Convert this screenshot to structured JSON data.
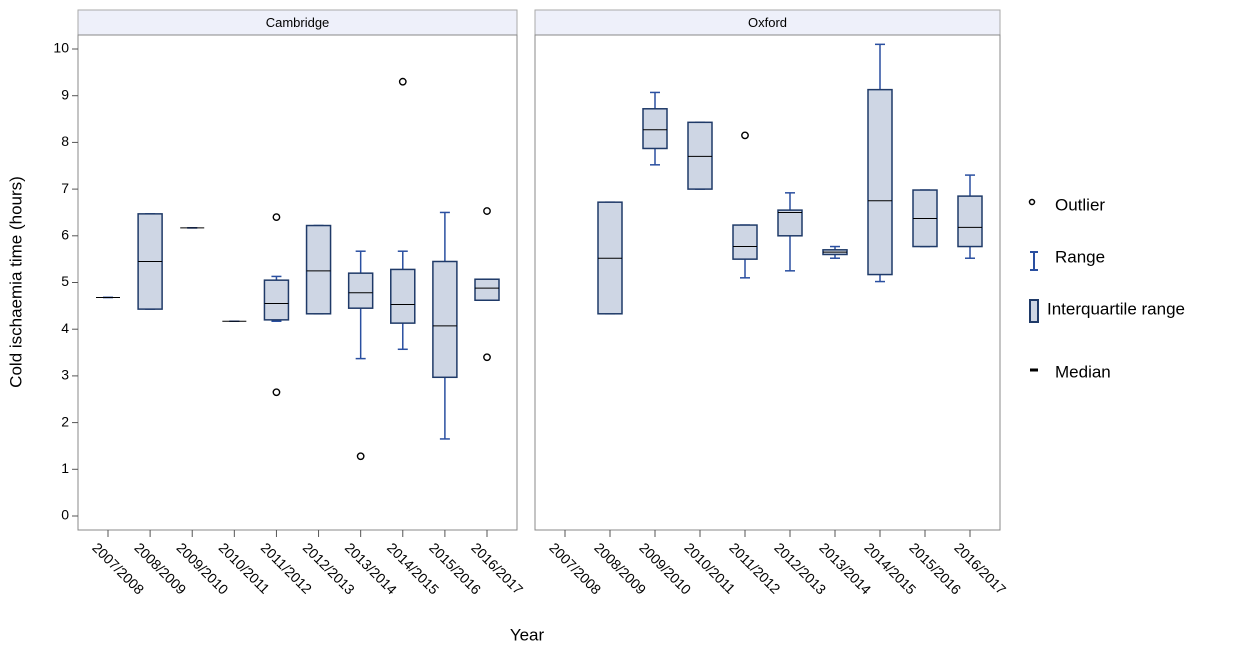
{
  "axis_labels": {
    "x": "Year",
    "y": "Cold ischaemia time (hours)"
  },
  "legend": [
    "Outlier",
    "Range",
    "Interquartile range",
    "Median"
  ],
  "chart_data": [
    {
      "type": "box",
      "title": "Cambridge",
      "categories": [
        "2007/2008",
        "2008/2009",
        "2009/2010",
        "2010/2011",
        "2011/2012",
        "2012/2013",
        "2013/2014",
        "2014/2015",
        "2015/2016",
        "2016/2017"
      ],
      "min": [
        4.68,
        4.43,
        6.17,
        4.17,
        4.17,
        4.33,
        3.37,
        3.57,
        1.65,
        4.62
      ],
      "q1": [
        4.68,
        4.43,
        6.17,
        4.17,
        4.2,
        4.33,
        4.45,
        4.13,
        2.97,
        4.62
      ],
      "median": [
        4.68,
        5.45,
        6.17,
        4.17,
        4.55,
        5.25,
        4.78,
        4.53,
        4.07,
        4.88
      ],
      "q3": [
        4.68,
        6.47,
        6.17,
        4.17,
        5.05,
        6.22,
        5.2,
        5.28,
        5.45,
        5.07
      ],
      "max": [
        4.68,
        6.47,
        6.17,
        4.17,
        5.13,
        6.22,
        5.67,
        5.67,
        6.5,
        5.07
      ],
      "outliers": [
        [],
        [],
        [],
        [],
        [
          6.4,
          2.65
        ],
        [],
        [
          1.28
        ],
        [
          9.3
        ],
        [],
        [
          6.53,
          3.4
        ]
      ],
      "box_color": "#ced6e4",
      "edge_color": "#1f3a68",
      "whisker_color": "#2a4fa0",
      "ylim": [
        -0.3,
        10.3
      ],
      "yticks": [
        0,
        1,
        2,
        3,
        4,
        5,
        6,
        7,
        8,
        9,
        10
      ]
    },
    {
      "type": "box",
      "title": "Oxford",
      "categories": [
        "2007/2008",
        "2008/2009",
        "2009/2010",
        "2010/2011",
        "2011/2012",
        "2012/2013",
        "2013/2014",
        "2014/2015",
        "2015/2016",
        "2016/2017"
      ],
      "min": [
        null,
        4.33,
        7.52,
        7.0,
        5.1,
        5.25,
        5.52,
        5.02,
        5.77,
        5.52
      ],
      "q1": [
        null,
        4.33,
        7.87,
        7.0,
        5.5,
        6.0,
        5.6,
        5.17,
        5.77,
        5.77
      ],
      "median": [
        null,
        5.52,
        8.27,
        7.7,
        5.77,
        6.5,
        5.65,
        6.75,
        6.37,
        6.18
      ],
      "q3": [
        null,
        6.72,
        8.72,
        8.43,
        6.23,
        6.55,
        5.7,
        9.13,
        6.98,
        6.85
      ],
      "max": [
        null,
        6.72,
        9.07,
        8.43,
        6.23,
        6.92,
        5.77,
        10.1,
        6.98,
        7.3
      ],
      "outliers": [
        [],
        [],
        [],
        [],
        [
          8.15
        ],
        [],
        [],
        [],
        [],
        []
      ],
      "box_color": "#ced6e4",
      "edge_color": "#1f3a68",
      "whisker_color": "#2a4fa0",
      "ylim": [
        -0.3,
        10.3
      ]
    }
  ]
}
